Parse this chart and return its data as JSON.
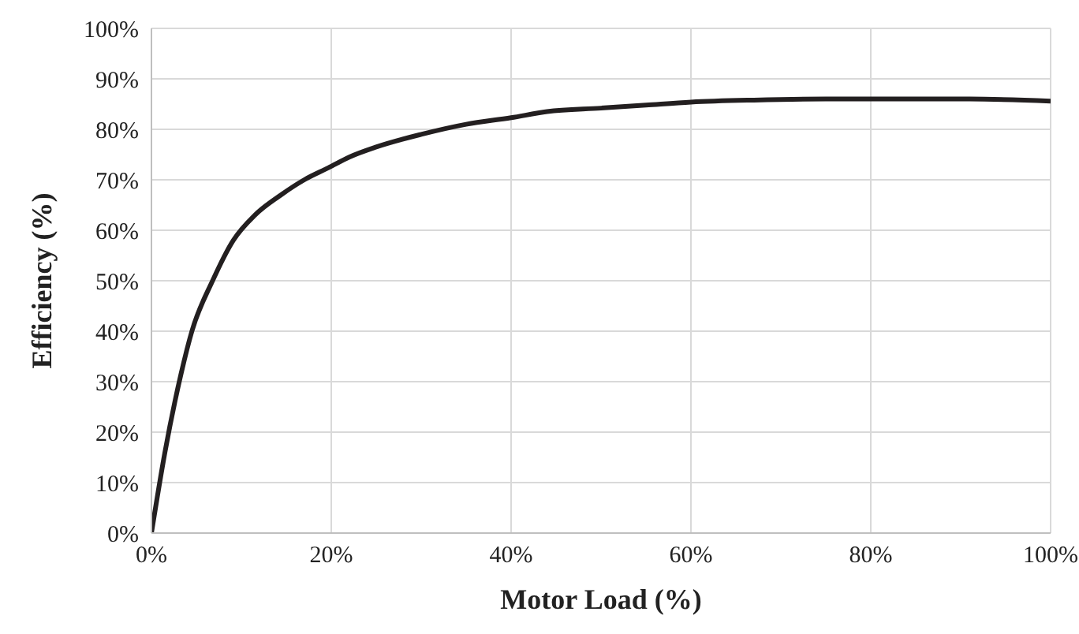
{
  "chart_data": {
    "type": "line",
    "xlabel": "Motor Load (%)",
    "ylabel": "Efficiency (%)",
    "x": [
      0,
      1.5,
      3.3,
      4.5,
      6.8,
      9.1,
      11.5,
      14.4,
      17,
      19.7,
      22,
      25,
      30,
      35,
      40,
      44,
      50,
      55,
      60,
      67,
      75,
      83,
      91,
      100
    ],
    "series": [
      {
        "color": "#231f20",
        "values": [
          0,
          16,
          31.6,
          40,
          50,
          58,
          63,
          67,
          70,
          72.4,
          74.5,
          76.5,
          79,
          81,
          82.3,
          83.5,
          84.2,
          84.8,
          85.4,
          85.8,
          86,
          86,
          86,
          85.6
        ]
      }
    ],
    "xlim": [
      0,
      100
    ],
    "xticks": [
      {
        "value": 0,
        "label": "0%"
      },
      {
        "value": 20,
        "label": "20%"
      },
      {
        "value": 40,
        "label": "40%"
      },
      {
        "value": 60,
        "label": "60%"
      },
      {
        "value": 80,
        "label": "80%"
      },
      {
        "value": 100,
        "label": "100%"
      }
    ],
    "ylim": [
      0,
      100
    ],
    "yticks": [
      {
        "value": 0,
        "label": "0%"
      },
      {
        "value": 10,
        "label": "10%"
      },
      {
        "value": 20,
        "label": "20%"
      },
      {
        "value": 30,
        "label": "30%"
      },
      {
        "value": 40,
        "label": "40%"
      },
      {
        "value": 50,
        "label": "50%"
      },
      {
        "value": 60,
        "label": "60%"
      },
      {
        "value": 70,
        "label": "70%"
      },
      {
        "value": 80,
        "label": "80%"
      },
      {
        "value": 90,
        "label": "90%"
      },
      {
        "value": 100,
        "label": "100%"
      }
    ],
    "grid": true,
    "marker": "none",
    "line_style": "solid",
    "legend": false
  }
}
